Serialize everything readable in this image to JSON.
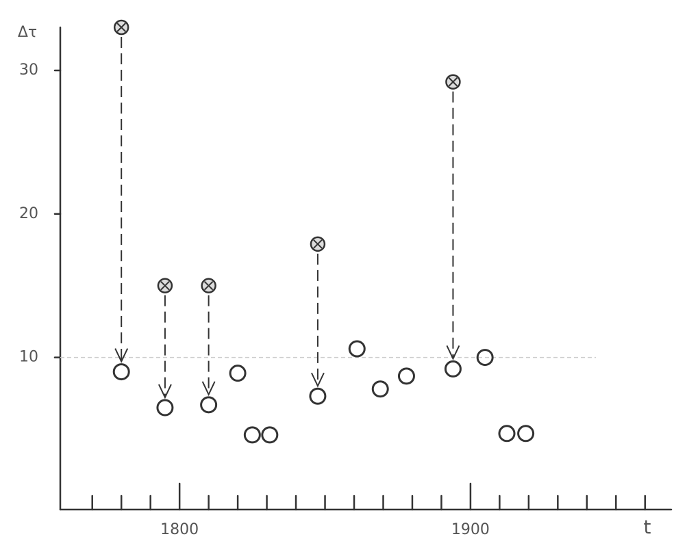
{
  "chart_data": {
    "type": "scatter",
    "x_label": "t",
    "y_label": "Δτ",
    "xlim": [
      1759,
      1969
    ],
    "ylim": [
      -0.6,
      33
    ],
    "xticks": [
      1800,
      1900
    ],
    "x_minor_ticks": [
      1770,
      1780,
      1790,
      1810,
      1820,
      1830,
      1840,
      1850,
      1860,
      1870,
      1880,
      1890,
      1910,
      1920,
      1930,
      1940,
      1950,
      1960
    ],
    "yticks": [
      10,
      20,
      30
    ],
    "reference_line": 10,
    "shifts": [
      {
        "x": 1780,
        "from": 33,
        "to": 9.0
      },
      {
        "x": 1795,
        "from": 15,
        "to": 6.5
      },
      {
        "x": 1810,
        "from": 15,
        "to": 6.7
      },
      {
        "x": 1847.5,
        "from": 17.9,
        "to": 7.3
      },
      {
        "x": 1894,
        "from": 29.2,
        "to": 9.2
      }
    ],
    "points": {
      "x": [
        1820,
        1825,
        1831,
        1861,
        1869,
        1878,
        1905,
        1912.5,
        1919
      ],
      "values": [
        8.9,
        4.6,
        4.6,
        10.6,
        7.8,
        8.7,
        10.0,
        4.7,
        4.7
      ]
    }
  }
}
